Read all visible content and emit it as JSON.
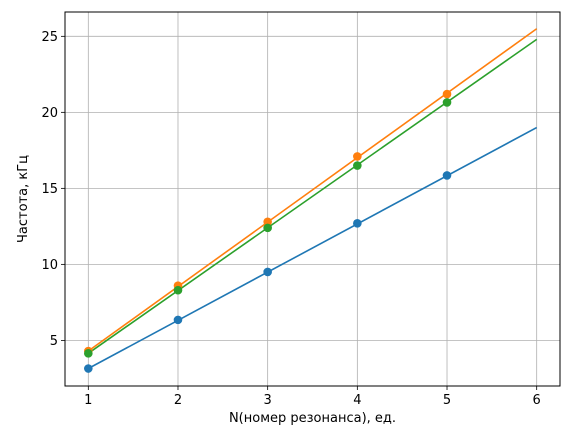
{
  "chart_data": {
    "type": "line",
    "title": "",
    "xlabel": "N(номер резонанса), ед.",
    "ylabel": "Частота, кГц",
    "xlim": [
      0.74,
      6.26
    ],
    "ylim": [
      2.0,
      26.6
    ],
    "grid": true,
    "legend": null,
    "xticks": [
      "1",
      "2",
      "3",
      "4",
      "5",
      "6"
    ],
    "yticks": [
      "5",
      "10",
      "15",
      "20",
      "25"
    ],
    "series": [
      {
        "color": "#1f77b4",
        "points_x": [
          1,
          2,
          3,
          4,
          5
        ],
        "points_y": [
          3.15,
          6.35,
          9.5,
          12.7,
          15.85
        ],
        "fit_x": [
          1,
          6
        ],
        "fit_y": [
          3.15,
          19.0
        ]
      },
      {
        "color": "#ff7f0e",
        "points_x": [
          1,
          2,
          3,
          4,
          5
        ],
        "points_y": [
          4.3,
          8.6,
          12.8,
          17.1,
          21.2
        ],
        "fit_x": [
          1,
          6
        ],
        "fit_y": [
          4.3,
          25.5
        ]
      },
      {
        "color": "#2ca02c",
        "points_x": [
          1,
          2,
          3,
          4,
          5
        ],
        "points_y": [
          4.15,
          8.3,
          12.4,
          16.5,
          20.65
        ],
        "fit_x": [
          1,
          6
        ],
        "fit_y": [
          4.15,
          24.8
        ]
      }
    ]
  }
}
